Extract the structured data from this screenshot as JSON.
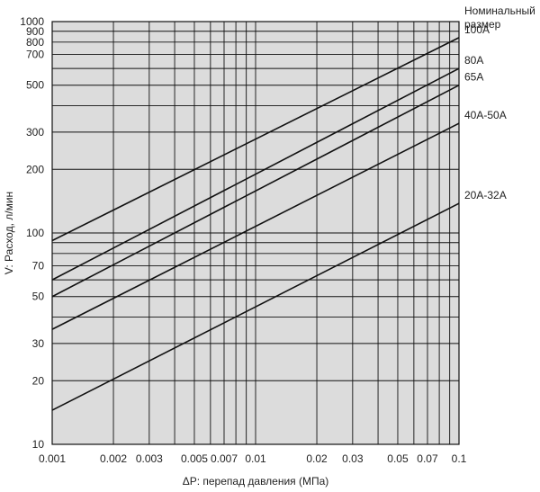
{
  "chart_data": {
    "type": "line",
    "x_scale": "log",
    "y_scale": "log",
    "xlim": [
      0.001,
      0.1
    ],
    "ylim": [
      10,
      1000
    ],
    "grid": true,
    "xlabel": "ΔP: перепад давления (МПа)",
    "ylabel": "V: Расход, л/мин",
    "legend_title": [
      "Номинальный",
      "размер"
    ],
    "x_tick_labels": [
      {
        "value": 0.001,
        "label": "0.001"
      },
      {
        "value": 0.002,
        "label": "0.002"
      },
      {
        "value": 0.003,
        "label": "0.003"
      },
      {
        "value": 0.005,
        "label": "0.005"
      },
      {
        "value": 0.007,
        "label": "0.007"
      },
      {
        "value": 0.01,
        "label": "0.01"
      },
      {
        "value": 0.02,
        "label": "0.02"
      },
      {
        "value": 0.03,
        "label": "0.03"
      },
      {
        "value": 0.05,
        "label": "0.05"
      },
      {
        "value": 0.07,
        "label": "0.07"
      },
      {
        "value": 0.1,
        "label": "0.1"
      }
    ],
    "y_tick_labels": [
      {
        "value": 10,
        "label": "10"
      },
      {
        "value": 20,
        "label": "20"
      },
      {
        "value": 30,
        "label": "30"
      },
      {
        "value": 50,
        "label": "50"
      },
      {
        "value": 70,
        "label": "70"
      },
      {
        "value": 100,
        "label": "100"
      },
      {
        "value": 200,
        "label": "200"
      },
      {
        "value": 300,
        "label": "300"
      },
      {
        "value": 500,
        "label": "500"
      },
      {
        "value": 700,
        "label": "700"
      },
      {
        "value": 800,
        "label": "800"
      },
      {
        "value": 900,
        "label": "900"
      },
      {
        "value": 1000,
        "label": "1000"
      }
    ],
    "series": [
      {
        "name": "100A",
        "x": [
          0.001,
          0.1
        ],
        "y": [
          92,
          840
        ]
      },
      {
        "name": "80A",
        "x": [
          0.001,
          0.1
        ],
        "y": [
          60,
          600
        ]
      },
      {
        "name": "65A",
        "x": [
          0.001,
          0.1
        ],
        "y": [
          50,
          500
        ]
      },
      {
        "name": "40A-50A",
        "x": [
          0.001,
          0.1
        ],
        "y": [
          35,
          330
        ]
      },
      {
        "name": "20A-32A",
        "x": [
          0.001,
          0.1
        ],
        "y": [
          14.5,
          138
        ]
      }
    ]
  },
  "style": {
    "plot_background": "#dcdcdc",
    "grid_color": "#111111",
    "line_color": "#111111"
  }
}
